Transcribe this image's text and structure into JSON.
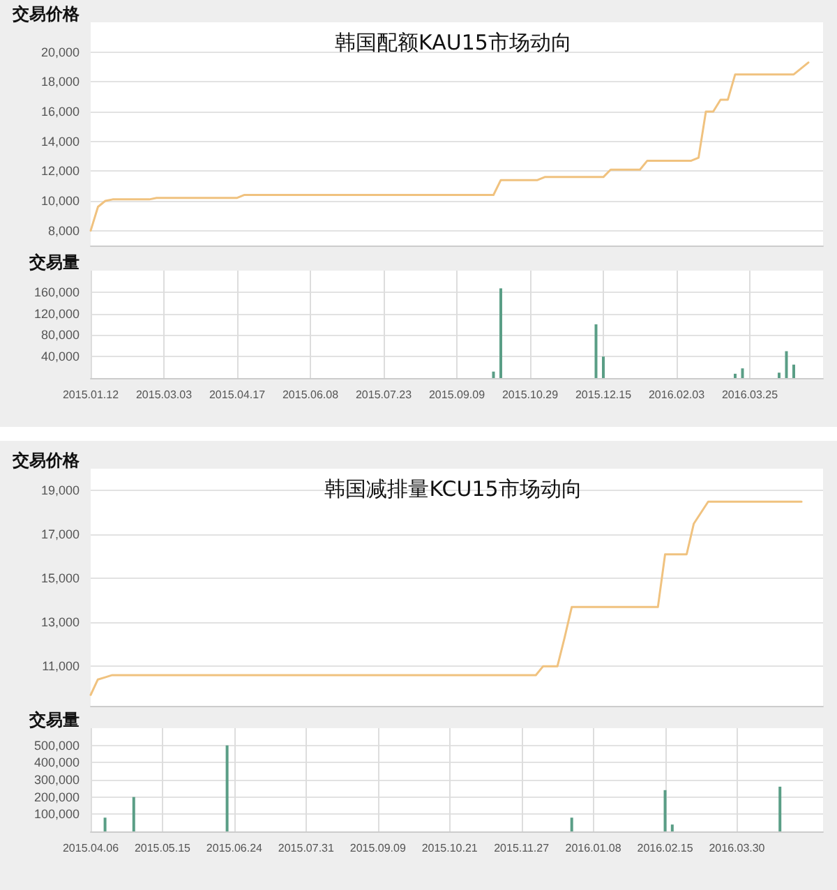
{
  "chart_data": [
    {
      "type": "line",
      "title": "韩国配额KAU15市场动向",
      "ylabel": "交易价格",
      "grid": "y",
      "tick_labels": "y",
      "color": "#f0c27f",
      "categories": [
        "2015.01.12",
        null,
        null,
        null,
        null,
        null,
        null,
        null,
        null,
        null,
        "2015.03.03",
        null,
        null,
        null,
        null,
        null,
        null,
        null,
        null,
        null,
        "2015.04.17",
        null,
        null,
        null,
        null,
        null,
        null,
        null,
        null,
        null,
        "2015.06.08",
        null,
        null,
        null,
        null,
        null,
        null,
        null,
        null,
        null,
        "2015.07.23",
        null,
        null,
        null,
        null,
        null,
        null,
        null,
        null,
        null,
        "2015.09.09",
        null,
        null,
        null,
        null,
        null,
        null,
        null,
        null,
        null,
        "2015.10.29",
        null,
        null,
        null,
        null,
        null,
        null,
        null,
        null,
        null,
        "2015.12.15",
        null,
        null,
        null,
        null,
        null,
        null,
        null,
        null,
        null,
        "2016.02.03",
        null,
        null,
        null,
        null,
        null,
        null,
        null,
        null,
        null,
        "2016.03.25",
        null,
        null,
        null,
        null,
        null,
        null,
        null,
        null,
        null,
        null
      ],
      "values": [
        8000,
        9600,
        10000,
        10100,
        10100,
        10100,
        10100,
        10100,
        10100,
        10200,
        10200,
        10200,
        10200,
        10200,
        10200,
        10200,
        10200,
        10200,
        10200,
        10200,
        10200,
        10400,
        10400,
        10400,
        10400,
        10400,
        10400,
        10400,
        10400,
        10400,
        10400,
        10400,
        10400,
        10400,
        10400,
        10400,
        10400,
        10400,
        10400,
        10400,
        10400,
        10400,
        10400,
        10400,
        10400,
        10400,
        10400,
        10400,
        10400,
        10400,
        10400,
        10400,
        10400,
        10400,
        10400,
        10400,
        11400,
        11400,
        11400,
        11400,
        11400,
        11400,
        11600,
        11600,
        11600,
        11600,
        11600,
        11600,
        11600,
        11600,
        11600,
        12100,
        12100,
        12100,
        12100,
        12100,
        12700,
        12700,
        12700,
        12700,
        12700,
        12700,
        12700,
        12900,
        16000,
        16000,
        16800,
        16800,
        18500,
        18500,
        18500,
        18500,
        18500,
        18500,
        18500,
        18500,
        18500,
        18900,
        19300,
        null,
        null
      ],
      "ylim": [
        7000,
        22000
      ],
      "yticks": [
        {
          "value": 8000,
          "label": "8,000"
        },
        {
          "value": 10000,
          "label": "10,000"
        },
        {
          "value": 12000,
          "label": "12,000"
        },
        {
          "value": 14000,
          "label": "14,000"
        },
        {
          "value": 16000,
          "label": "16,000"
        },
        {
          "value": 18000,
          "label": "18,000"
        },
        {
          "value": 20000,
          "label": "20,000"
        }
      ]
    },
    {
      "type": "bar",
      "ylabel": "交易量",
      "grid": true,
      "color": "#5a9e86",
      "categories": [
        "2015.01.12",
        null,
        null,
        null,
        null,
        null,
        null,
        null,
        null,
        null,
        "2015.03.03",
        null,
        null,
        null,
        null,
        null,
        null,
        null,
        null,
        null,
        "2015.04.17",
        null,
        null,
        null,
        null,
        null,
        null,
        null,
        null,
        null,
        "2015.06.08",
        null,
        null,
        null,
        null,
        null,
        null,
        null,
        null,
        null,
        "2015.07.23",
        null,
        null,
        null,
        null,
        null,
        null,
        null,
        null,
        null,
        "2015.09.09",
        null,
        null,
        null,
        null,
        null,
        null,
        null,
        null,
        null,
        "2015.10.29",
        null,
        null,
        null,
        null,
        null,
        null,
        null,
        null,
        null,
        "2015.12.15",
        null,
        null,
        null,
        null,
        null,
        null,
        null,
        null,
        null,
        "2016.02.03",
        null,
        null,
        null,
        null,
        null,
        null,
        null,
        null,
        null,
        "2016.03.25",
        null,
        null,
        null,
        null,
        null,
        null,
        null,
        null,
        null,
        null
      ],
      "values": [
        null,
        null,
        null,
        null,
        null,
        null,
        null,
        null,
        null,
        null,
        null,
        null,
        null,
        null,
        null,
        null,
        null,
        null,
        null,
        null,
        null,
        null,
        null,
        null,
        null,
        null,
        null,
        null,
        null,
        null,
        null,
        null,
        null,
        null,
        null,
        null,
        null,
        null,
        null,
        null,
        null,
        null,
        null,
        null,
        null,
        null,
        null,
        null,
        null,
        null,
        null,
        null,
        null,
        null,
        null,
        12000,
        167000,
        null,
        null,
        null,
        null,
        null,
        null,
        null,
        null,
        null,
        null,
        null,
        null,
        100000,
        40000,
        null,
        null,
        null,
        null,
        null,
        null,
        null,
        null,
        null,
        null,
        null,
        null,
        null,
        null,
        null,
        null,
        null,
        8000,
        18000,
        null,
        null,
        null,
        null,
        10000,
        50000,
        25000,
        null,
        null,
        null,
        null
      ],
      "ylim": [
        0,
        200000
      ],
      "yticks": [
        {
          "value": 40000,
          "label": "40,000"
        },
        {
          "value": 80000,
          "label": "80,000"
        },
        {
          "value": 120000,
          "label": "120,000"
        },
        {
          "value": 160000,
          "label": "160,000"
        }
      ]
    },
    {
      "type": "line",
      "title": "韩国减排量KCU15市场动向",
      "ylabel": "交易价格",
      "grid": "y",
      "tick_labels": "y",
      "color": "#f0c27f",
      "categories": [
        "2015.04.06",
        null,
        null,
        null,
        null,
        null,
        null,
        null,
        null,
        null,
        "2015.05.15",
        null,
        null,
        null,
        null,
        null,
        null,
        null,
        null,
        null,
        "2015.06.24",
        null,
        null,
        null,
        null,
        null,
        null,
        null,
        null,
        null,
        "2015.07.31",
        null,
        null,
        null,
        null,
        null,
        null,
        null,
        null,
        null,
        "2015.09.09",
        null,
        null,
        null,
        null,
        null,
        null,
        null,
        null,
        null,
        "2015.10.21",
        null,
        null,
        null,
        null,
        null,
        null,
        null,
        null,
        null,
        "2015.11.27",
        null,
        null,
        null,
        null,
        null,
        null,
        null,
        null,
        null,
        "2016.01.08",
        null,
        null,
        null,
        null,
        null,
        null,
        null,
        null,
        null,
        "2016.02.15",
        null,
        null,
        null,
        null,
        null,
        null,
        null,
        null,
        null,
        "2016.03.30",
        null,
        null,
        null,
        null,
        null,
        null,
        null,
        null,
        null,
        null,
        null,
        null
      ],
      "values": [
        9700,
        10400,
        10500,
        10600,
        10600,
        10600,
        10600,
        10600,
        10600,
        10600,
        10600,
        10600,
        10600,
        10600,
        10600,
        10600,
        10600,
        10600,
        10600,
        10600,
        10600,
        10600,
        10600,
        10600,
        10600,
        10600,
        10600,
        10600,
        10600,
        10600,
        10600,
        10600,
        10600,
        10600,
        10600,
        10600,
        10600,
        10600,
        10600,
        10600,
        10600,
        10600,
        10600,
        10600,
        10600,
        10600,
        10600,
        10600,
        10600,
        10600,
        10600,
        10600,
        10600,
        10600,
        10600,
        10600,
        10600,
        10600,
        10600,
        10600,
        10600,
        10600,
        10600,
        11000,
        11000,
        11000,
        12300,
        13700,
        13700,
        13700,
        13700,
        13700,
        13700,
        13700,
        13700,
        13700,
        13700,
        13700,
        13700,
        13700,
        16100,
        16100,
        16100,
        16100,
        17500,
        18000,
        18500,
        18500,
        18500,
        18500,
        18500,
        18500,
        18500,
        18500,
        18500,
        18500,
        18500,
        18500,
        18500,
        18500,
        null,
        null,
        null
      ],
      "ylim": [
        9200,
        20000
      ],
      "yticks": [
        {
          "value": 11000,
          "label": "11,000"
        },
        {
          "value": 13000,
          "label": "13,000"
        },
        {
          "value": 15000,
          "label": "15,000"
        },
        {
          "value": 17000,
          "label": "17,000"
        },
        {
          "value": 19000,
          "label": "19,000"
        }
      ]
    },
    {
      "type": "bar",
      "ylabel": "交易量",
      "grid": true,
      "color": "#5a9e86",
      "categories": [
        "2015.04.06",
        null,
        null,
        null,
        null,
        null,
        null,
        null,
        null,
        null,
        "2015.05.15",
        null,
        null,
        null,
        null,
        null,
        null,
        null,
        null,
        null,
        "2015.06.24",
        null,
        null,
        null,
        null,
        null,
        null,
        null,
        null,
        null,
        "2015.07.31",
        null,
        null,
        null,
        null,
        null,
        null,
        null,
        null,
        null,
        "2015.09.09",
        null,
        null,
        null,
        null,
        null,
        null,
        null,
        null,
        null,
        "2015.10.21",
        null,
        null,
        null,
        null,
        null,
        null,
        null,
        null,
        null,
        "2015.11.27",
        null,
        null,
        null,
        null,
        null,
        null,
        null,
        null,
        null,
        "2016.01.08",
        null,
        null,
        null,
        null,
        null,
        null,
        null,
        null,
        null,
        "2016.02.15",
        null,
        null,
        null,
        null,
        null,
        null,
        null,
        null,
        null,
        "2016.03.30",
        null,
        null,
        null,
        null,
        null,
        null,
        null,
        null,
        null,
        null,
        null,
        null
      ],
      "values": [
        null,
        null,
        80000,
        null,
        null,
        null,
        200000,
        null,
        null,
        null,
        null,
        null,
        null,
        null,
        null,
        null,
        null,
        null,
        null,
        500000,
        null,
        null,
        null,
        null,
        null,
        null,
        null,
        null,
        null,
        null,
        null,
        null,
        null,
        null,
        null,
        null,
        null,
        null,
        null,
        null,
        null,
        null,
        null,
        null,
        null,
        null,
        null,
        null,
        null,
        null,
        null,
        null,
        null,
        null,
        null,
        null,
        null,
        null,
        null,
        null,
        null,
        null,
        null,
        null,
        null,
        null,
        null,
        80000,
        null,
        null,
        null,
        null,
        null,
        null,
        null,
        null,
        null,
        null,
        null,
        null,
        240000,
        40000,
        null,
        null,
        null,
        null,
        null,
        null,
        null,
        null,
        null,
        null,
        null,
        null,
        null,
        null,
        260000,
        null,
        null,
        null,
        null,
        null,
        null
      ],
      "ylim": [
        0,
        600000
      ],
      "yticks": [
        {
          "value": 100000,
          "label": "100,000"
        },
        {
          "value": 200000,
          "label": "200,000"
        },
        {
          "value": 300000,
          "label": "300,000"
        },
        {
          "value": 400000,
          "label": "400,000"
        },
        {
          "value": 500000,
          "label": "500,000"
        }
      ]
    }
  ]
}
